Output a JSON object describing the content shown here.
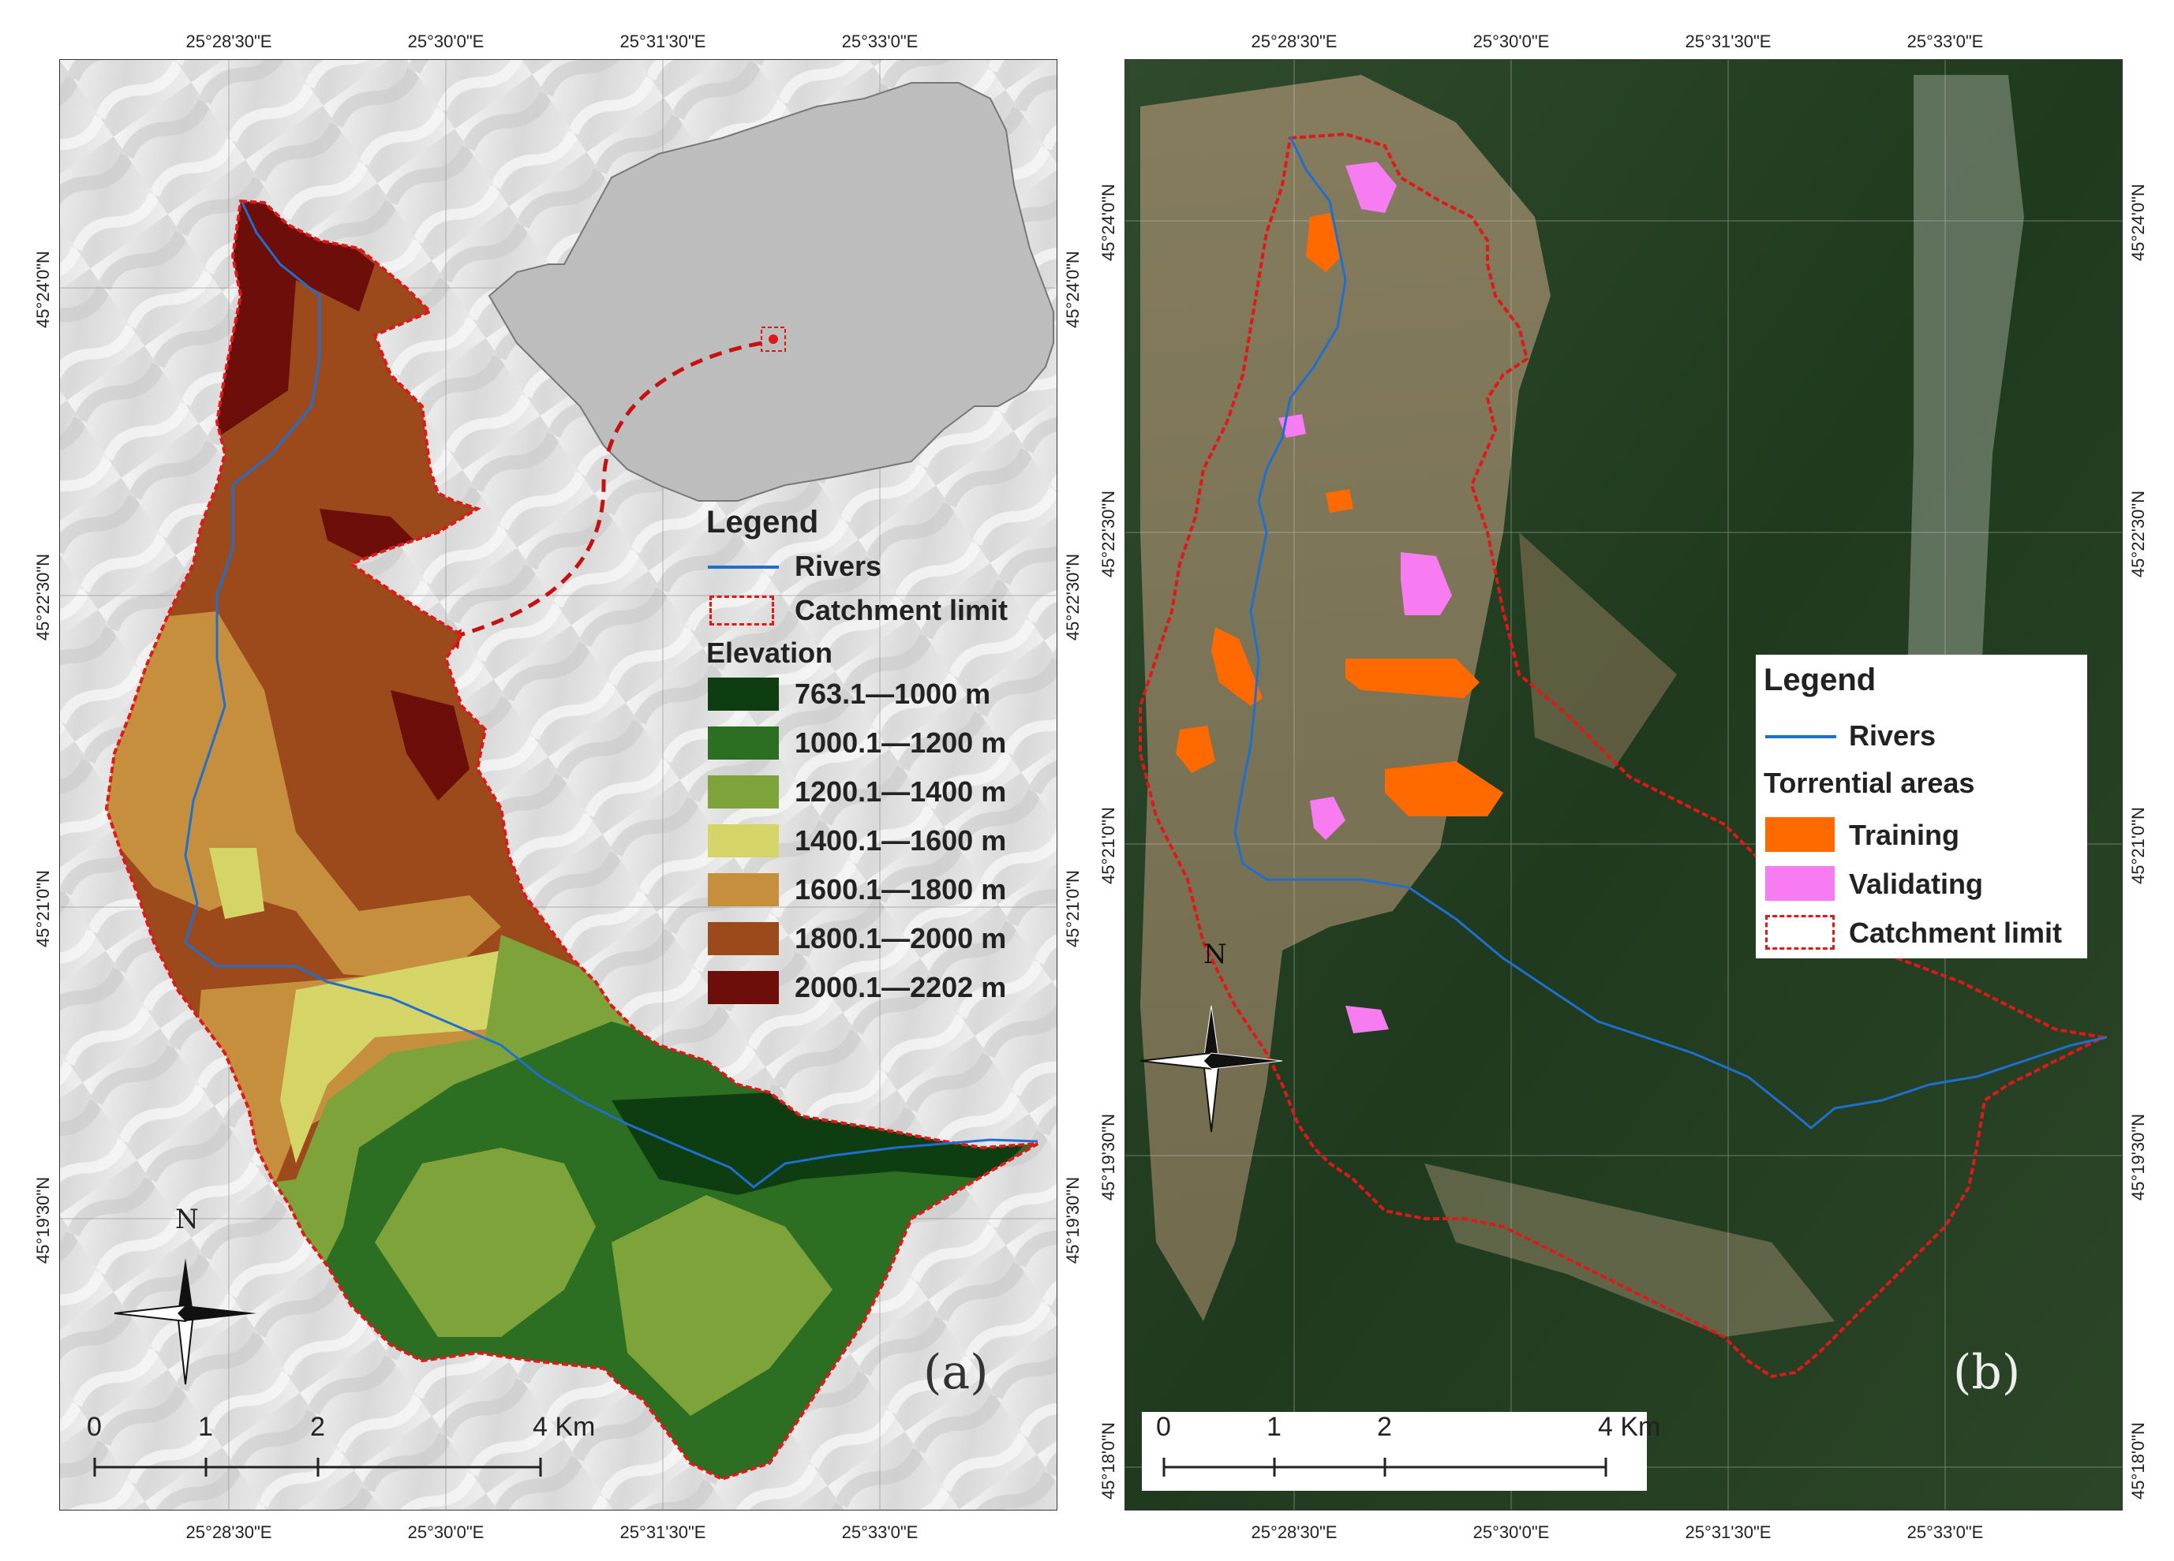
{
  "panels": {
    "a": {
      "label": "(a)",
      "top_coords": [
        "25°28'30\"E",
        "25°30'0\"E",
        "25°31'30\"E",
        "25°33'0\"E"
      ],
      "bottom_coords": [
        "25°28'30\"E",
        "25°30'0\"E",
        "25°31'30\"E",
        "25°33'0\"E"
      ],
      "left_coords": [
        "45°24'0\"N",
        "45°22'30\"N",
        "45°21'0\"N",
        "45°19'30\"N"
      ],
      "right_coords": [
        "45°24'0\"N",
        "45°22'30\"N",
        "45°21'0\"N",
        "45°19'30\"N"
      ],
      "legend": {
        "title": "Legend",
        "rivers": "Rivers",
        "catchment": "Catchment limit",
        "elevation_title": "Elevation",
        "classes": [
          {
            "label": "763.1—1000 m",
            "color": "#0d3d10"
          },
          {
            "label": "1000.1—1200 m",
            "color": "#2c6e22"
          },
          {
            "label": "1200.1—1400 m",
            "color": "#7ea33a"
          },
          {
            "label": "1400.1—1600 m",
            "color": "#d4d566"
          },
          {
            "label": "1600.1—1800 m",
            "color": "#c68f3e"
          },
          {
            "label": "1800.1—2000 m",
            "color": "#9c4a1c"
          },
          {
            "label": "2000.1—2202 m",
            "color": "#6e0e0a"
          }
        ]
      },
      "north": "N",
      "scale": {
        "ticks": [
          "0",
          "1",
          "2",
          "4 Km"
        ]
      }
    },
    "b": {
      "label": "(b)",
      "top_coords": [
        "25°28'30\"E",
        "25°30'0\"E",
        "25°31'30\"E",
        "25°33'0\"E"
      ],
      "bottom_coords": [
        "25°28'30\"E",
        "25°30'0\"E",
        "25°31'30\"E",
        "25°33'0\"E"
      ],
      "left_coords": [
        "45°24'0\"N",
        "45°22'30\"N",
        "45°21'0\"N",
        "45°19'30\"N",
        "45°18'0\"N"
      ],
      "right_coords": [
        "45°24'0\"N",
        "45°22'30\"N",
        "45°21'0\"N",
        "45°19'30\"N",
        "45°18'0\"N"
      ],
      "legend": {
        "title": "Legend",
        "rivers": "Rivers",
        "torrential_title": "Torrential areas",
        "training": "Training",
        "validating": "Validating",
        "catchment": "Catchment limit"
      },
      "north": "N",
      "scale": {
        "ticks": [
          "0",
          "1",
          "2",
          "4 Km"
        ]
      }
    }
  },
  "colors": {
    "river": "#1f6fd1",
    "catchment": "#e01818",
    "training": "#ff6a00",
    "validating": "#f77cf2",
    "romania": "#bdbdbd"
  }
}
